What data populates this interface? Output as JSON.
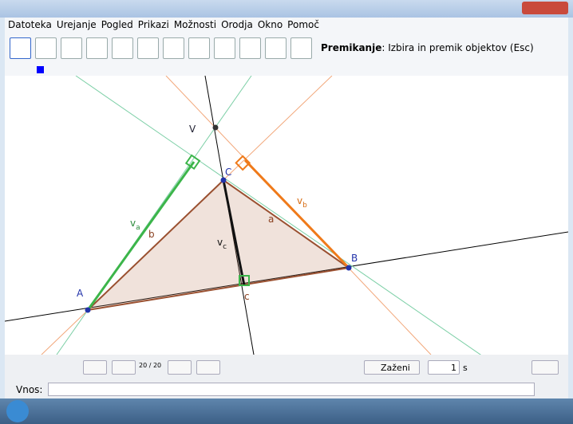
{
  "menu": [
    "Datoteka",
    "Urejanje",
    "Pogled",
    "Prikazi",
    "Možnosti",
    "Orodja",
    "Okno",
    "Pomoč"
  ],
  "toolbar": {
    "mode_name": "Premikanje",
    "mode_description": ": Izbira in premik objektov (Esc)"
  },
  "geometry": {
    "points": [
      "V",
      "C",
      "A",
      "B"
    ],
    "sides": [
      "a",
      "b",
      "c"
    ],
    "altitudes": [
      {
        "main": "v",
        "sub": "a"
      },
      {
        "main": "v",
        "sub": "b"
      },
      {
        "main": "v",
        "sub": "c"
      }
    ]
  },
  "animation": {
    "counter": "20 / 20",
    "play": "Zaženi",
    "speed": "1",
    "unit": "s"
  },
  "input": {
    "label": "Vnos:"
  }
}
